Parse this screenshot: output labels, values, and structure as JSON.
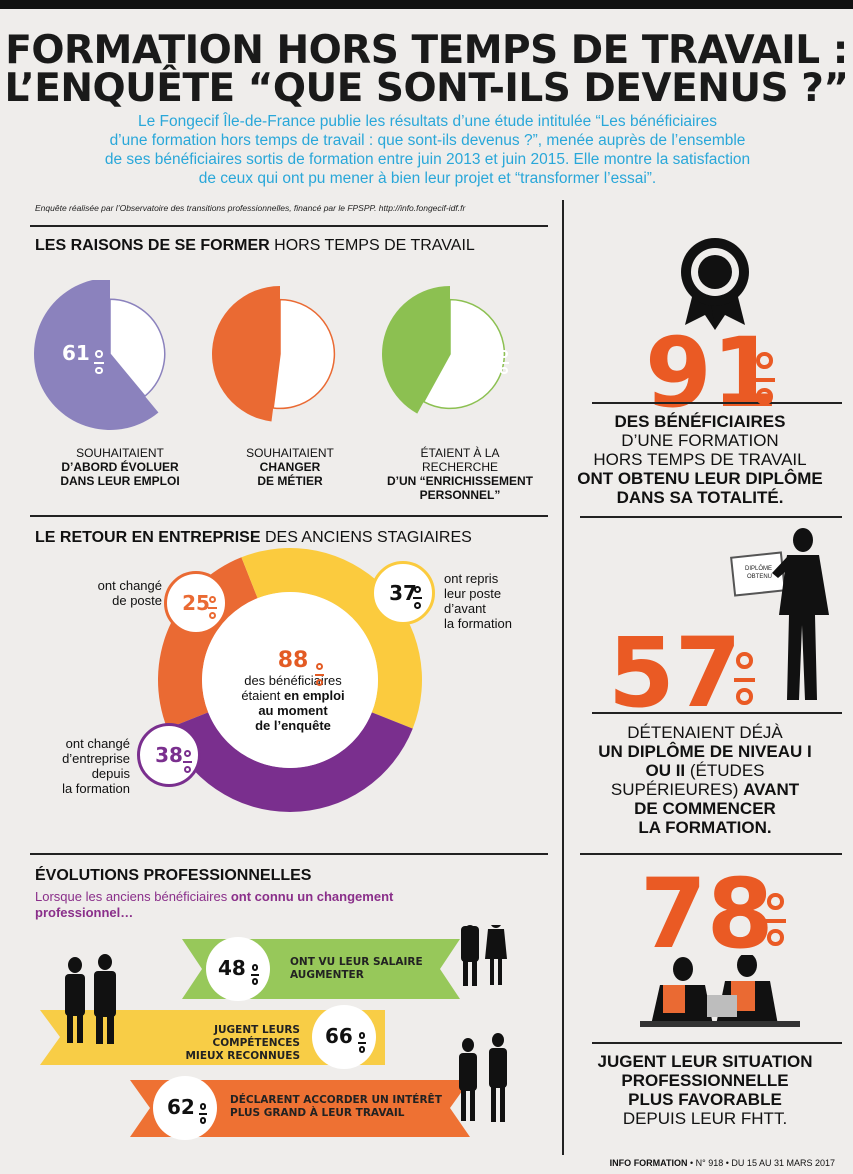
{
  "header": {
    "title_line1": "FORMATION HORS TEMPS DE TRAVAIL :",
    "title_line2": "L’ENQUÊTE “QUE SONT-ILS DEVENUS ?”",
    "intro_lines": [
      "Le Fongecif Île-de-France publie les résultats d’une étude intitulée “Les bénéficiaires",
      "d’une formation hors temps de travail : que sont-ils devenus ?”, menée auprès de l’ensemble",
      "de ses bénéficiaires sortis de formation entre juin 2013 et juin 2015. Elle montre la satisfaction",
      "de ceux qui ont pu mener à bien leur projet et “transformer l’essai”."
    ],
    "source": "Enquête réalisée par l’Observatoire des transitions professionnelles, financé par le FPSPP. http://info.fongecif-idf.fr"
  },
  "section_raisons": {
    "heading_bold": "LES RAISONS DE SE FORMER",
    "heading_rest": " HORS TEMPS DE TRAVAIL",
    "pies": [
      {
        "value_label": "61",
        "line1": "SOUHAITAIENT",
        "line2": "D’ABORD ÉVOLUER",
        "line3": "DANS LEUR EMPLOI"
      },
      {
        "value_label": "48",
        "line1": "SOUHAITAIENT",
        "line2": "CHANGER",
        "line3": "DE MÉTIER"
      },
      {
        "value_label": "42",
        "line1": "ÉTAIENT À LA RECHERCHE",
        "line2": "D’UN “ENRICHISSEMENT",
        "line3": "PERSONNEL”"
      }
    ]
  },
  "section_retour": {
    "heading_bold": "LE RETOUR EN ENTREPRISE",
    "heading_rest": " DES ANCIENS STAGIAIRES",
    "center_value": "88",
    "center_line1": "des bénéficiaires",
    "center_line2a": "étaient ",
    "center_line2b": "en emploi",
    "center_line3": "au moment",
    "center_line4": "de l’enquête",
    "segments": [
      {
        "value_label": "25",
        "label_lines": [
          "ont changé",
          "de poste"
        ]
      },
      {
        "value_label": "37",
        "label_lines": [
          "ont repris",
          "leur poste",
          "d’avant",
          "la formation"
        ]
      },
      {
        "value_label": "38",
        "label_lines": [
          "ont changé",
          "d’entreprise",
          "depuis",
          "la formation"
        ]
      }
    ]
  },
  "section_evolutions": {
    "heading": "ÉVOLUTIONS PROFESSIONNELLES",
    "sub_plain": "Lorsque les anciens bénéficiaires ",
    "sub_bold": "ont connu un changement",
    "sub_line2": "professionnel…",
    "banners": [
      {
        "value_label": "48",
        "line1": "ONT VU LEUR SALAIRE",
        "line2": "AUGMENTER"
      },
      {
        "value_label": "66",
        "line1": "JUGENT LEURS COMPÉTENCES",
        "line2": "MIEUX RECONNUES"
      },
      {
        "value_label": "62",
        "line1": "DÉCLARENT ACCORDER UN INTÉRÊT",
        "line2": "PLUS GRAND À LEUR TRAVAIL"
      }
    ]
  },
  "sidebar": {
    "stat1": {
      "value": "91",
      "lines_bold1": "DES BÉNÉFICIAIRES",
      "line2": "D’UNE FORMATION",
      "line3": "HORS TEMPS DE TRAVAIL",
      "bold4": "ONT OBTENU LEUR DIPLÔME",
      "bold5": "DANS SA TOTALITÉ."
    },
    "stat2": {
      "value": "57",
      "line1": "DÉTENAIENT DÉJÀ",
      "bold2": "UN DIPLÔME DE NIVEAU I",
      "bold3a": "OU II",
      "rest3": " (ÉTUDES",
      "rest4a": "SUPÉRIEURES) ",
      "bold4b": "AVANT",
      "bold5": "DE COMMENCER",
      "bold6": "LA FORMATION."
    },
    "stat3": {
      "value": "78",
      "bold1": "JUGENT LEUR SITUATION",
      "bold2": "PROFESSIONNELLE",
      "bold3": "PLUS FAVORABLE",
      "line4": "DEPUIS LEUR FHTT."
    },
    "diploma_text1": "DIPLÔME",
    "diploma_text2": "OBTENU"
  },
  "footer": {
    "brand_a": "INFO",
    "brand_b": "FORMATION",
    "rest": " • N° 918 • DU 15 AU 31 MARS 2017"
  },
  "colors": {
    "purple": "#8b82bd",
    "orange": "#ea6a33",
    "green": "#8cc051",
    "yellow": "#fbc93b",
    "ring_purple": "#7a2f8e",
    "ring_orange": "#ea6a33",
    "ring_yellow": "#fbcb3e",
    "banner_green": "#97c85a",
    "banner_yellow": "#f8cd46",
    "banner_orange": "#ee7133",
    "big_orange": "#ea5a24",
    "intro_blue": "#29a7d9"
  },
  "chart_data": [
    {
      "type": "pie",
      "title": "LES RAISONS DE SE FORMER HORS TEMPS DE TRAVAIL",
      "categories": [
        "SOUHAITAIENT D’ABORD ÉVOLUER DANS LEUR EMPLOI",
        "SOUHAITAIENT CHANGER DE MÉTIER",
        "ÉTAIENT À LA RECHERCHE D’UN “ENRICHISSEMENT PERSONNEL”"
      ],
      "values": [
        61,
        48,
        42
      ],
      "unit": "%"
    },
    {
      "type": "pie",
      "title": "LE RETOUR EN ENTREPRISE DES ANCIENS STAGIAIRES",
      "categories": [
        "ont changé de poste",
        "ont repris leur poste d’avant la formation",
        "ont changé d’entreprise depuis la formation"
      ],
      "values": [
        25,
        37,
        38
      ],
      "center_value": 88,
      "unit": "%"
    },
    {
      "type": "bar",
      "title": "ÉVOLUTIONS PROFESSIONNELLES",
      "categories": [
        "ONT VU LEUR SALAIRE AUGMENTER",
        "JUGENT LEURS COMPÉTENCES MIEUX RECONNUES",
        "DÉCLARENT ACCORDER UN INTÉRÊT PLUS GRAND À LEUR TRAVAIL"
      ],
      "values": [
        48,
        66,
        62
      ],
      "unit": "%"
    }
  ]
}
